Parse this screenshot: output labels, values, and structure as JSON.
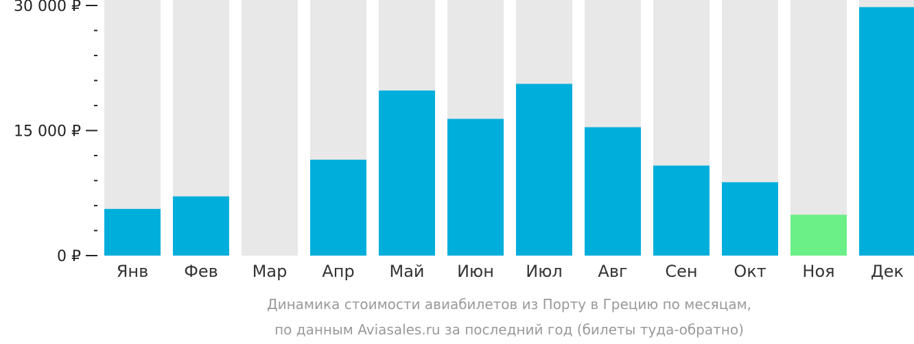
{
  "chart_data": {
    "type": "bar",
    "categories": [
      "Янв",
      "Фев",
      "Мар",
      "Апр",
      "Май",
      "Июн",
      "Июл",
      "Авг",
      "Сен",
      "Окт",
      "Ноя",
      "Дек"
    ],
    "values": [
      5600,
      7100,
      0,
      11500,
      19800,
      16400,
      20600,
      15400,
      10800,
      8800,
      4900,
      29800
    ],
    "ylim": [
      0,
      30000
    ],
    "yticks": [
      {
        "value": 0,
        "label": "0 ₽"
      },
      {
        "value": 15000,
        "label": "15 000 ₽"
      },
      {
        "value": 30000,
        "label": "30 000 ₽"
      }
    ],
    "minor_tick_step": 3000,
    "highlight_index": 10,
    "colors": {
      "bar": "#00AEDB",
      "highlight": "#6BEF87",
      "background_bar": "#E8E8E8",
      "axis": "#222222",
      "caption": "#999999"
    }
  },
  "caption": {
    "line1": "Динамика стоимости авиабилетов из Порту в Грецию по месяцам,",
    "line2": "по данным Aviasales.ru за последний год (билеты туда-обратно)"
  }
}
